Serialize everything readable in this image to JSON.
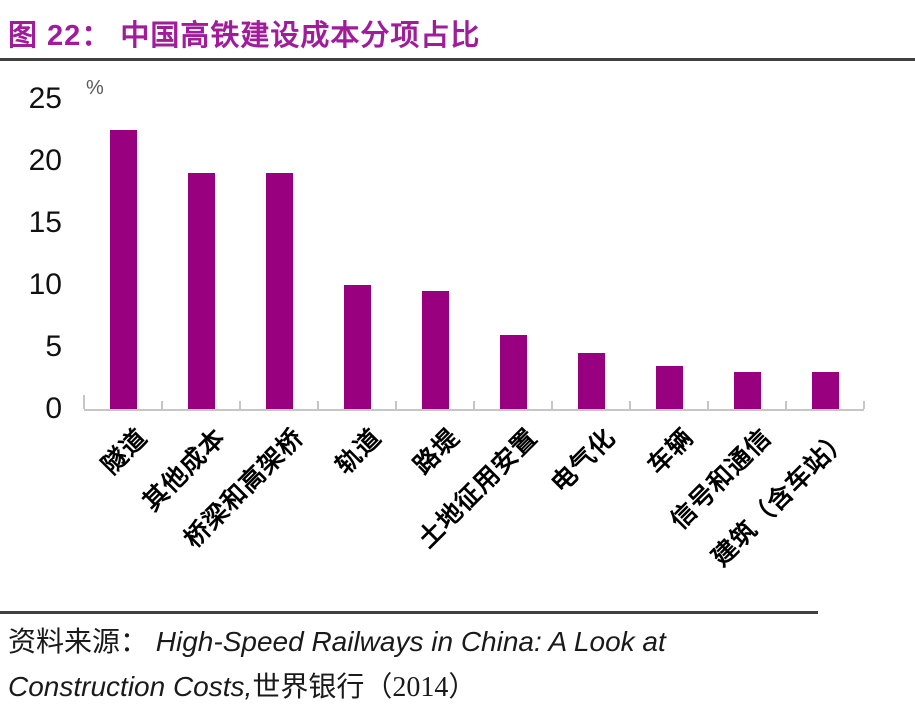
{
  "title": "图 22：  中国高铁建设成本分项占比",
  "chart_data": {
    "type": "bar",
    "title": "中国高铁建设成本分项占比",
    "unit_label": "%",
    "categories": [
      "隧道",
      "其他成本",
      "桥梁和高架桥",
      "轨道",
      "路堤",
      "土地征用安置",
      "电气化",
      "车辆",
      "信号和通信",
      "建筑（含车站）"
    ],
    "values": [
      22.5,
      19,
      19,
      10,
      9.5,
      6,
      4.5,
      3.5,
      3,
      3
    ],
    "xlabel": "",
    "ylabel": "%",
    "ylim": [
      0,
      25
    ],
    "yticks": [
      0,
      5,
      10,
      15,
      20,
      25
    ],
    "grid": false,
    "legend_position": "none",
    "bar_color": "#990080",
    "xlabel_rotation_deg": -45
  },
  "colors": {
    "title": "#a01c9a",
    "bar": "#990080",
    "rule": "#404040",
    "axis": "#c6c6c6",
    "percent": "#595959"
  },
  "source": {
    "label": "资料来源：",
    "work": "High-Speed Railways in China: A Look at Construction Costs,",
    "publisher": "世界银行（2014）"
  }
}
